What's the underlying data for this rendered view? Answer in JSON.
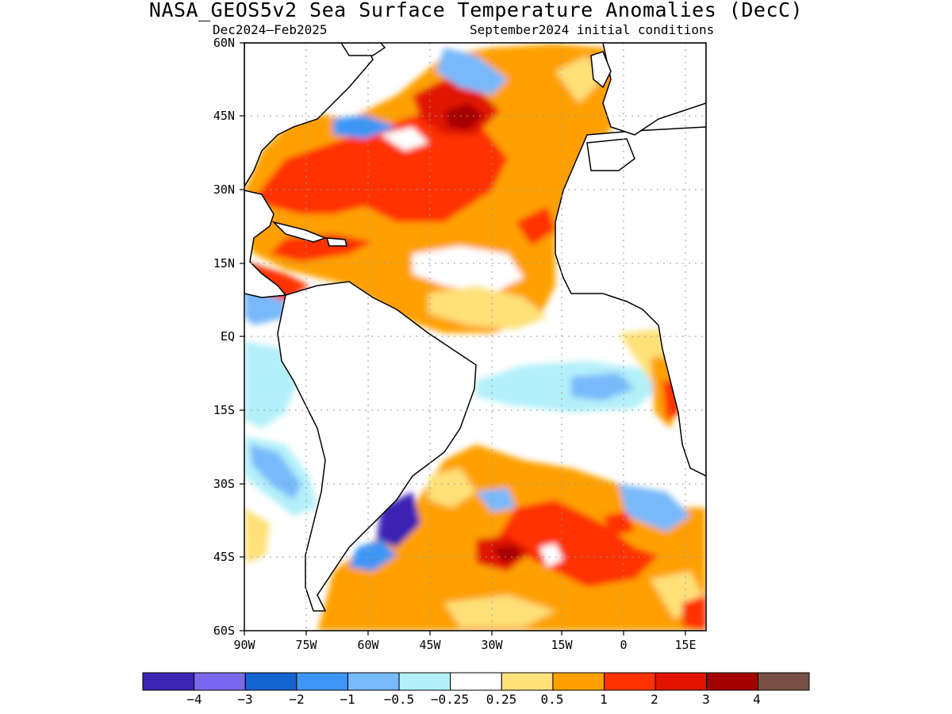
{
  "header": {
    "title": "NASA_GEOS5v2 Sea Surface Temperature Anomalies (DecC)",
    "season": "Dec2024–Feb2025",
    "init": "September2024 initial conditions"
  },
  "map": {
    "lat_labels": [
      "60N",
      "45N",
      "30N",
      "15N",
      "EQ",
      "15S",
      "30S",
      "45S",
      "60S"
    ],
    "lon_labels": [
      "90W",
      "75W",
      "60W",
      "45W",
      "30W",
      "15W",
      "0",
      "15E"
    ]
  },
  "colorbar": {
    "colors": [
      "#3b24b4",
      "#7b68ee",
      "#1464d2",
      "#3c96f5",
      "#78b9fa",
      "#b4f0fa",
      "#ffffff",
      "#ffe178",
      "#ffa000",
      "#ff3200",
      "#e11400",
      "#a50000",
      "#785046"
    ],
    "labels": [
      "−4",
      "−3",
      "−2",
      "−1",
      "−0.5",
      "−0.25",
      "0.25",
      "0.5",
      "1",
      "2",
      "3",
      "4"
    ]
  }
}
